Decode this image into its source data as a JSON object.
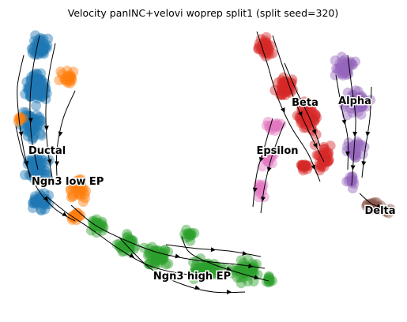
{
  "chart_data": {
    "type": "scatter",
    "title": "Velocity panINC+velovi woprep split1 (split seed=320)",
    "xlabel": "",
    "ylabel": "",
    "axes_visible": false,
    "grid": false,
    "legend": "on data",
    "overlay": "velocity streamlines with arrowheads",
    "series": [
      {
        "name": "Ductal",
        "color": "#1f77b4"
      },
      {
        "name": "Ngn3 low EP",
        "color": "#ff7f0e"
      },
      {
        "name": "Ngn3 high EP",
        "color": "#2ca02c"
      },
      {
        "name": "Beta",
        "color": "#d62728"
      },
      {
        "name": "Alpha",
        "color": "#9467bd"
      },
      {
        "name": "Delta",
        "color": "#8c564b"
      },
      {
        "name": "Epsilon",
        "color": "#e377c2"
      }
    ]
  }
}
